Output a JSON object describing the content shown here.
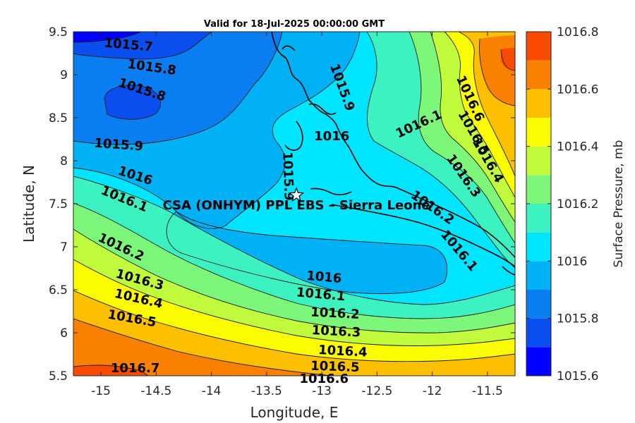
{
  "chart_data": {
    "type": "contour",
    "title": "Valid for 18-Jul-2025 00:00:00 GMT",
    "xlabel": "Longitude, E",
    "ylabel": "Latitude, N",
    "xlim": [
      -15.25,
      -11.25
    ],
    "ylim": [
      5.5,
      9.5
    ],
    "xticks": [
      -15,
      -14.5,
      -14,
      -13.5,
      -13,
      -12.5,
      -12,
      -11.5
    ],
    "yticks": [
      5.5,
      6,
      6.5,
      7,
      7.5,
      8,
      8.5,
      9,
      9.5
    ],
    "colorbar": {
      "label": "Surface Pressure, mb",
      "min": 1015.6,
      "max": 1016.8,
      "ticks": [
        1015.6,
        1015.8,
        1016,
        1016.2,
        1016.4,
        1016.6,
        1016.8
      ],
      "levels": [
        1015.6,
        1015.7,
        1015.8,
        1015.9,
        1016.0,
        1016.1,
        1016.2,
        1016.3,
        1016.4,
        1016.5,
        1016.6,
        1016.7,
        1016.8
      ],
      "colors": [
        "#0000ff",
        "#0b4ef0",
        "#0a7ef0",
        "#00b2f5",
        "#00e5ff",
        "#3cf2c0",
        "#7df77a",
        "#c0fb3c",
        "#fcfc00",
        "#fdc000",
        "#f98000",
        "#f84a00",
        "#ff0000"
      ]
    },
    "contour_labels": [
      {
        "text": "1015.7",
        "x": -14.75,
        "y": 9.34
      },
      {
        "text": "1015.8",
        "x": -14.54,
        "y": 9.08
      },
      {
        "text": "1015.8",
        "x": -14.63,
        "y": 8.82
      },
      {
        "text": "1015.9",
        "x": -14.84,
        "y": 8.18
      },
      {
        "text": "1016",
        "x": -14.69,
        "y": 7.82
      },
      {
        "text": "1016.1",
        "x": -14.79,
        "y": 7.55
      },
      {
        "text": "1016.2",
        "x": -14.82,
        "y": 6.99
      },
      {
        "text": "1016.3",
        "x": -14.65,
        "y": 6.61
      },
      {
        "text": "1016.4",
        "x": -14.66,
        "y": 6.39
      },
      {
        "text": "1016.5",
        "x": -14.72,
        "y": 6.16
      },
      {
        "text": "1016.7",
        "x": -14.69,
        "y": 5.58
      },
      {
        "text": "1015.9",
        "x": -12.82,
        "y": 8.85
      },
      {
        "text": "1016",
        "x": -12.91,
        "y": 8.28
      },
      {
        "text": "1015.9",
        "x": -13.31,
        "y": 7.82
      },
      {
        "text": "1016.1",
        "x": -12.12,
        "y": 8.42
      },
      {
        "text": "1016.6",
        "x": -11.66,
        "y": 8.72
      },
      {
        "text": "1016.5",
        "x": -11.63,
        "y": 8.32
      },
      {
        "text": "1016.4",
        "x": -11.5,
        "y": 8.0
      },
      {
        "text": "1016.3",
        "x": -11.72,
        "y": 7.82
      },
      {
        "text": "1016.2",
        "x": -12.0,
        "y": 7.45
      },
      {
        "text": "1016.1",
        "x": -11.76,
        "y": 6.95
      },
      {
        "text": "1016",
        "x": -12.98,
        "y": 6.64
      },
      {
        "text": "1016.1",
        "x": -13.01,
        "y": 6.44
      },
      {
        "text": "1016.2",
        "x": -12.88,
        "y": 6.22
      },
      {
        "text": "1016.3",
        "x": -12.87,
        "y": 6.01
      },
      {
        "text": "1016.4",
        "x": -12.81,
        "y": 5.78
      },
      {
        "text": "1016.5",
        "x": -12.88,
        "y": 5.6
      },
      {
        "text": "1016.6",
        "x": -12.98,
        "y": 5.46
      }
    ],
    "site": {
      "name": "CSA (ONHYM) PPL EBS  – Sierra Leone",
      "lon": -13.23,
      "lat": 7.6
    }
  }
}
